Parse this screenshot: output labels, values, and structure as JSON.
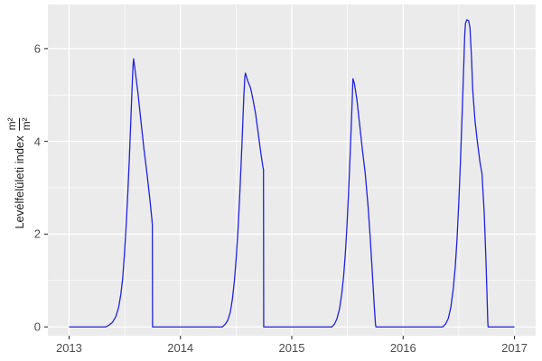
{
  "figure": {
    "background": "#ffffff",
    "panel_background": "#ebebeb",
    "grid_major_color": "#ffffff",
    "grid_minor_color": "#ffffff",
    "tick_mark_color": "#333333",
    "tick_label_color": "#4d4d4d",
    "axis_title_color": "#1a1a1a",
    "line_color": "#2222dd"
  },
  "chart_data": {
    "type": "line",
    "title": "",
    "xlabel": "",
    "ylabel": {
      "text": "Levélfelületi index",
      "unit_numerator": "m²",
      "unit_denominator": "m²"
    },
    "legend": "none",
    "grid": "ggplot-gray, white major and minor gridlines",
    "x_ticks": [
      2013,
      2014,
      2015,
      2016,
      2017
    ],
    "x_minor_ticks": [
      2013.5,
      2014.5,
      2015.5,
      2016.5
    ],
    "y_ticks": [
      0,
      2,
      4,
      6
    ],
    "y_minor_ticks": [
      1,
      3,
      5
    ],
    "xlim": [
      2012.81,
      2017.19
    ],
    "ylim": [
      -0.19,
      6.95
    ],
    "series": [
      {
        "name": "Levélfelületi index",
        "color": "#2222dd",
        "points": [
          [
            2013.0,
            0.0
          ],
          [
            2013.33,
            0.0
          ],
          [
            2013.36,
            0.04
          ],
          [
            2013.39,
            0.1
          ],
          [
            2013.42,
            0.22
          ],
          [
            2013.445,
            0.42
          ],
          [
            2013.465,
            0.7
          ],
          [
            2013.482,
            1.05
          ],
          [
            2013.497,
            1.55
          ],
          [
            2013.512,
            2.15
          ],
          [
            2013.527,
            2.85
          ],
          [
            2013.541,
            3.6
          ],
          [
            2013.554,
            4.4
          ],
          [
            2013.566,
            5.15
          ],
          [
            2013.575,
            5.65
          ],
          [
            2013.58,
            5.78
          ],
          [
            2013.592,
            5.55
          ],
          [
            2013.617,
            5.08
          ],
          [
            2013.645,
            4.45
          ],
          [
            2013.672,
            3.85
          ],
          [
            2013.7,
            3.3
          ],
          [
            2013.726,
            2.75
          ],
          [
            2013.745,
            2.3
          ],
          [
            2013.748,
            2.2
          ],
          [
            2013.75,
            0.0
          ],
          [
            2014.375,
            0.0
          ],
          [
            2014.4,
            0.05
          ],
          [
            2014.425,
            0.14
          ],
          [
            2014.448,
            0.32
          ],
          [
            2014.468,
            0.62
          ],
          [
            2014.485,
            1.0
          ],
          [
            2014.5,
            1.45
          ],
          [
            2014.515,
            2.0
          ],
          [
            2014.53,
            2.7
          ],
          [
            2014.544,
            3.45
          ],
          [
            2014.557,
            4.2
          ],
          [
            2014.569,
            4.95
          ],
          [
            2014.579,
            5.4
          ],
          [
            2014.584,
            5.47
          ],
          [
            2014.605,
            5.3
          ],
          [
            2014.63,
            5.15
          ],
          [
            2014.652,
            4.9
          ],
          [
            2014.675,
            4.6
          ],
          [
            2014.7,
            4.15
          ],
          [
            2014.725,
            3.7
          ],
          [
            2014.743,
            3.42
          ],
          [
            2014.746,
            3.4
          ],
          [
            2014.748,
            0.0
          ],
          [
            2015.36,
            0.0
          ],
          [
            2015.383,
            0.06
          ],
          [
            2015.405,
            0.17
          ],
          [
            2015.428,
            0.38
          ],
          [
            2015.448,
            0.7
          ],
          [
            2015.465,
            1.08
          ],
          [
            2015.48,
            1.55
          ],
          [
            2015.495,
            2.15
          ],
          [
            2015.51,
            2.9
          ],
          [
            2015.524,
            3.7
          ],
          [
            2015.536,
            4.45
          ],
          [
            2015.545,
            5.05
          ],
          [
            2015.549,
            5.35
          ],
          [
            2015.562,
            5.25
          ],
          [
            2015.585,
            4.9
          ],
          [
            2015.61,
            4.35
          ],
          [
            2015.635,
            3.8
          ],
          [
            2015.66,
            3.3
          ],
          [
            2015.685,
            2.6
          ],
          [
            2015.705,
            1.9
          ],
          [
            2015.725,
            1.1
          ],
          [
            2015.742,
            0.4
          ],
          [
            2015.752,
            0.05
          ],
          [
            2015.756,
            0.0
          ],
          [
            2016.355,
            0.0
          ],
          [
            2016.38,
            0.06
          ],
          [
            2016.405,
            0.18
          ],
          [
            2016.428,
            0.42
          ],
          [
            2016.449,
            0.8
          ],
          [
            2016.468,
            1.3
          ],
          [
            2016.484,
            1.9
          ],
          [
            2016.5,
            2.7
          ],
          [
            2016.515,
            3.6
          ],
          [
            2016.53,
            4.6
          ],
          [
            2016.543,
            5.55
          ],
          [
            2016.553,
            6.3
          ],
          [
            2016.56,
            6.55
          ],
          [
            2016.572,
            6.62
          ],
          [
            2016.588,
            6.6
          ],
          [
            2016.6,
            6.45
          ],
          [
            2016.614,
            5.8
          ],
          [
            2016.625,
            5.1
          ],
          [
            2016.645,
            4.45
          ],
          [
            2016.666,
            4.0
          ],
          [
            2016.69,
            3.55
          ],
          [
            2016.708,
            3.3
          ],
          [
            2016.728,
            2.45
          ],
          [
            2016.744,
            1.4
          ],
          [
            2016.753,
            0.7
          ],
          [
            2016.76,
            0.1
          ],
          [
            2016.763,
            0.0
          ],
          [
            2017.0,
            0.0
          ]
        ]
      }
    ]
  }
}
